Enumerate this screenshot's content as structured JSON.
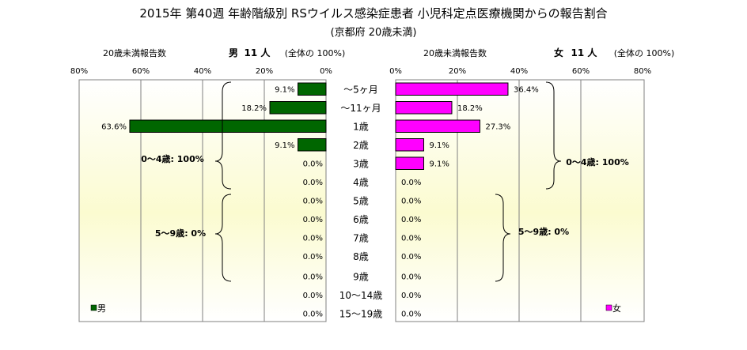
{
  "chart_data": {
    "type": "bar",
    "title": "2015年 第40週 年齢階級別 RSウイルス感染症患者 小児科定点医療機関からの報告割合",
    "subtitle": "(京都府 20歳未満)",
    "categories": [
      "～5ヶ月",
      "～11ヶ月",
      "1歳",
      "2歳",
      "3歳",
      "4歳",
      "5歳",
      "6歳",
      "7歳",
      "8歳",
      "9歳",
      "10～14歳",
      "15～19歳"
    ],
    "xlim": [
      0,
      80
    ],
    "ticks": [
      "80%",
      "60%",
      "40%",
      "20%",
      "0%"
    ],
    "ticks_right": [
      "0%",
      "20%",
      "40%",
      "60%",
      "80%"
    ],
    "grid": true,
    "series": [
      {
        "name": "男",
        "color": "#006600",
        "values": [
          9.1,
          18.2,
          63.6,
          9.1,
          0.0,
          0.0,
          0.0,
          0.0,
          0.0,
          0.0,
          0.0,
          0.0,
          0.0
        ],
        "labels": [
          "9.1%",
          "18.2%",
          "63.6%",
          "9.1%",
          "0.0%",
          "0.0%",
          "0.0%",
          "0.0%",
          "0.0%",
          "0.0%",
          "0.0%",
          "0.0%",
          "0.0%"
        ]
      },
      {
        "name": "女",
        "color": "#ff00ff",
        "values": [
          36.4,
          18.2,
          27.3,
          9.1,
          9.1,
          0.0,
          0.0,
          0.0,
          0.0,
          0.0,
          0.0,
          0.0,
          0.0
        ],
        "labels": [
          "36.4%",
          "18.2%",
          "27.3%",
          "9.1%",
          "9.1%",
          "0.0%",
          "0.0%",
          "0.0%",
          "0.0%",
          "0.0%",
          "0.0%",
          "0.0%",
          "0.0%"
        ]
      }
    ],
    "left_header": {
      "axis_label": "20歳未満報告数",
      "sex": "男",
      "count": "11 人",
      "note": "(全体の 100%)"
    },
    "right_header": {
      "axis_label": "20歳未満報告数",
      "sex": "女",
      "count": "11 人",
      "note": "(全体の 100%)"
    },
    "group_labels": {
      "left_0_4": "0～4歳: 100%",
      "left_5_9": "5～9歳: 0%",
      "right_0_4": "0～4歳: 100%",
      "right_5_9": "5～9歳: 0%"
    },
    "legend": {
      "left": "男",
      "right": "女",
      "placement": "bottom-corners"
    }
  }
}
